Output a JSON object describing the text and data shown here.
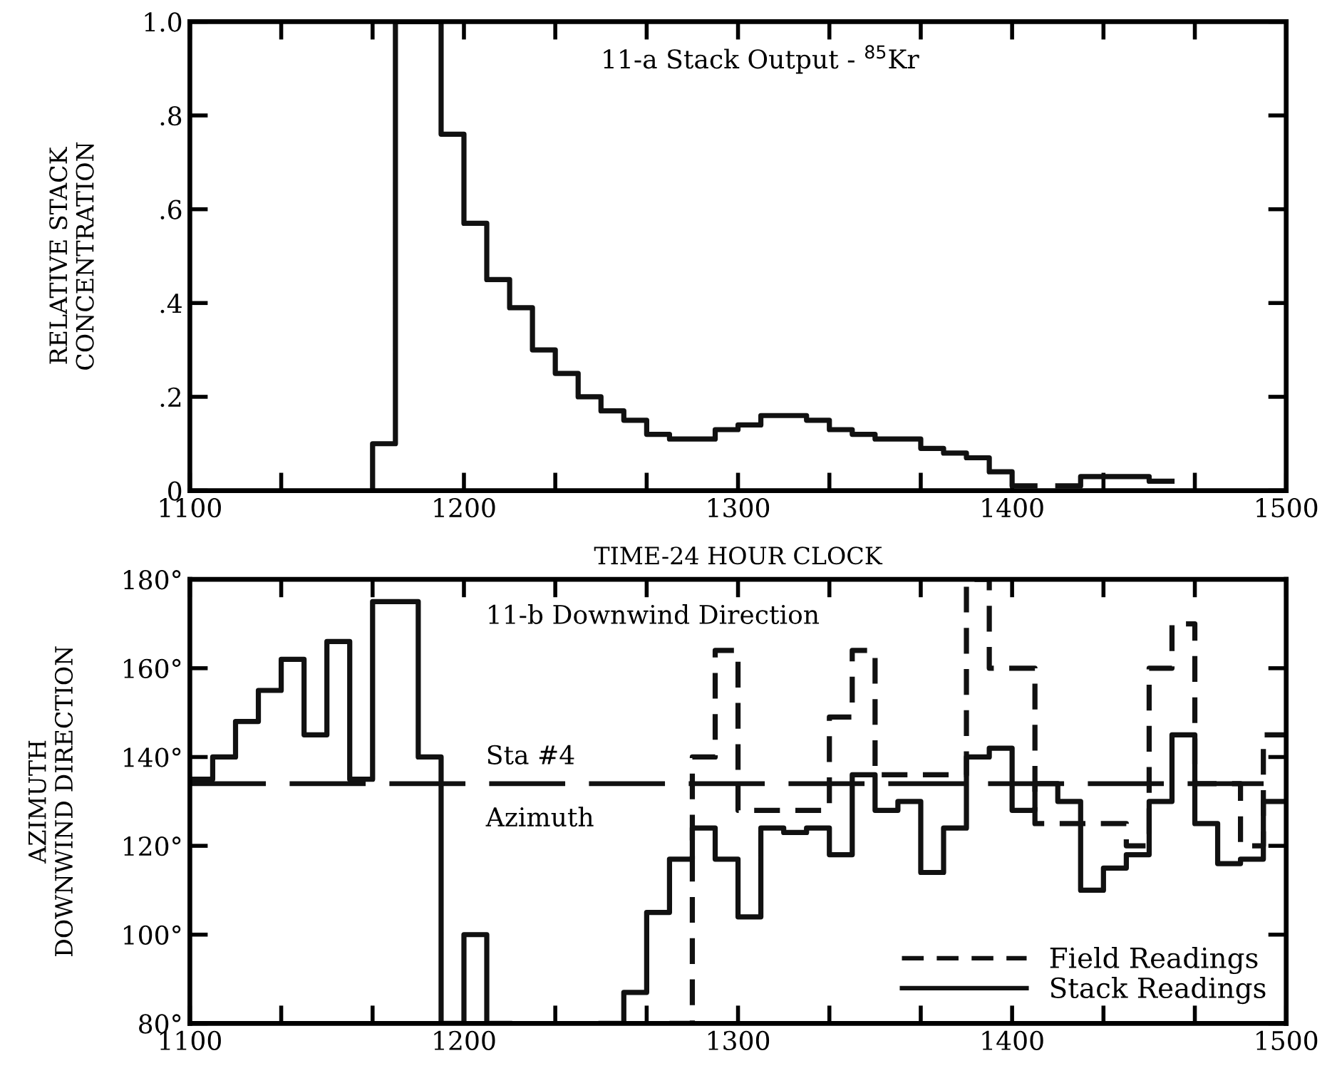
{
  "chart_data": [
    {
      "type": "step",
      "title": "11-a Stack Output - $^{85}$Kr",
      "xlabel": "TIME-24 HOUR CLOCK",
      "ylabel": "RELATIVE STACK\nCONCENTRATION",
      "series": [
        {
          "color": "#111111",
          "line_style": "solid",
          "x": [
            1166.67,
            1166.67,
            1175,
            1183.33,
            1191.67,
            1200,
            1208.33,
            1216.67,
            1225,
            1233.33,
            1241.67,
            1250,
            1258.33,
            1266.67,
            1275,
            1283.33,
            1291.67,
            1300,
            1308.33,
            1316.67,
            1325,
            1333.33,
            1341.67,
            1350,
            1358.33,
            1366.67,
            1375,
            1383.33,
            1391.67,
            1400,
            1408.33,
            1416.67,
            1425,
            1433.33,
            1441.67,
            1450,
            1458.33
          ],
          "values": [
            0,
            0.1,
            1.0,
            1.0,
            0.76,
            0.57,
            0.45,
            0.39,
            0.3,
            0.25,
            0.2,
            0.17,
            0.15,
            0.12,
            0.11,
            0.11,
            0.13,
            0.14,
            0.16,
            0.16,
            0.15,
            0.13,
            0.12,
            0.11,
            0.11,
            0.09,
            0.08,
            0.07,
            0.04,
            0.01,
            null,
            0.01,
            0.03,
            0.03,
            0.03,
            0.02,
            0.02
          ]
        }
      ],
      "xlim": [
        1100,
        1500
      ],
      "xticks": [
        1100,
        {
          "value": 1133.33,
          "label": null
        },
        {
          "value": 1166.67,
          "label": null
        },
        1200,
        {
          "value": 1233.33,
          "label": null
        },
        {
          "value": 1266.67,
          "label": null
        },
        1300,
        {
          "value": 1333.33,
          "label": null
        },
        {
          "value": 1366.67,
          "label": null
        },
        1400,
        {
          "value": 1433.33,
          "label": null
        },
        {
          "value": 1466.67,
          "label": null
        },
        1500
      ],
      "ylim": [
        0,
        1
      ],
      "yticks": [
        0,
        {
          "value": 0.2,
          "label": ".2"
        },
        {
          "value": 0.4,
          "label": ".4"
        },
        {
          "value": 0.6,
          "label": ".6"
        },
        {
          "value": 0.8,
          "label": ".8"
        },
        {
          "value": 1,
          "label": "1.0"
        }
      ],
      "grid": false,
      "legend": false
    },
    {
      "type": "step",
      "title": "11-b Downwind Direction",
      "ylabel": "AZIMUTH\nDOWNWIND DIRECTION",
      "series": [
        {
          "name": "Field Readings",
          "color": "#111111",
          "line_style": "dashed",
          "x": [
            1275,
            1283.33,
            1291.67,
            1300,
            1308.33,
            1316.67,
            1325,
            1333.33,
            1341.67,
            1350,
            1358.33,
            1366.67,
            1375,
            1383.33,
            1391.67,
            1400,
            1408.33,
            1416.67,
            1425,
            1433.33,
            1441.67,
            1450,
            1458.33,
            1466.67,
            1475,
            1483.33,
            1491.67,
            1500
          ],
          "values": [
            80,
            140,
            164,
            128,
            128,
            128,
            128,
            149,
            164,
            136,
            136,
            136,
            136,
            180,
            160,
            160,
            125,
            125,
            125,
            125,
            120,
            160,
            170,
            134,
            134,
            120,
            145,
            145
          ]
        },
        {
          "name": "Stack Readings",
          "color": "#111111",
          "line_style": "solid",
          "x": [
            1100,
            1108.33,
            1116.67,
            1125,
            1133.33,
            1141.67,
            1150,
            1158.33,
            1166.67,
            1175,
            1183.33,
            1191.67,
            1200,
            1208.33,
            1216.67,
            1225,
            1233.33,
            1241.67,
            1250,
            1258.33,
            1266.67,
            1275,
            1283.33,
            1291.67,
            1300,
            1308.33,
            1316.67,
            1325,
            1333.33,
            1341.67,
            1350,
            1358.33,
            1366.67,
            1375,
            1383.33,
            1391.67,
            1400,
            1408.33,
            1416.67,
            1425,
            1433.33,
            1441.67,
            1450,
            1458.33,
            1466.67,
            1475,
            1483.33,
            1491.67,
            1500
          ],
          "values": [
            135,
            140,
            148,
            155,
            162,
            145,
            166,
            135,
            175,
            175,
            140,
            80,
            100,
            80,
            null,
            null,
            null,
            null,
            80,
            87,
            105,
            117,
            124,
            117,
            104,
            124,
            123,
            124,
            118,
            136,
            128,
            130,
            114,
            124,
            140,
            142,
            128,
            134,
            130,
            110,
            115,
            118,
            130,
            145,
            125,
            116,
            117,
            130,
            130
          ]
        }
      ],
      "ref_lines": [
        {
          "axis": "y",
          "value": 134,
          "line_style": "dashed",
          "color": "#111111"
        }
      ],
      "annotations": [
        "Sta #4",
        "Azimuth"
      ],
      "xlim": [
        1100,
        1500
      ],
      "xticks": [
        1100,
        {
          "value": 1133.33,
          "label": null
        },
        {
          "value": 1166.67,
          "label": null
        },
        1200,
        {
          "value": 1233.33,
          "label": null
        },
        {
          "value": 1266.67,
          "label": null
        },
        1300,
        {
          "value": 1333.33,
          "label": null
        },
        {
          "value": 1366.67,
          "label": null
        },
        1400,
        {
          "value": 1433.33,
          "label": null
        },
        {
          "value": 1466.67,
          "label": null
        },
        1500
      ],
      "ylim": [
        80,
        180
      ],
      "yticks": [
        {
          "value": 80,
          "label": "80°"
        },
        {
          "value": 100,
          "label": "100°"
        },
        {
          "value": 120,
          "label": "120°"
        },
        {
          "value": 140,
          "label": "140°"
        },
        {
          "value": 160,
          "label": "160°"
        },
        {
          "value": 180,
          "label": "180°"
        }
      ],
      "grid": false,
      "legend": "bottom right"
    }
  ]
}
